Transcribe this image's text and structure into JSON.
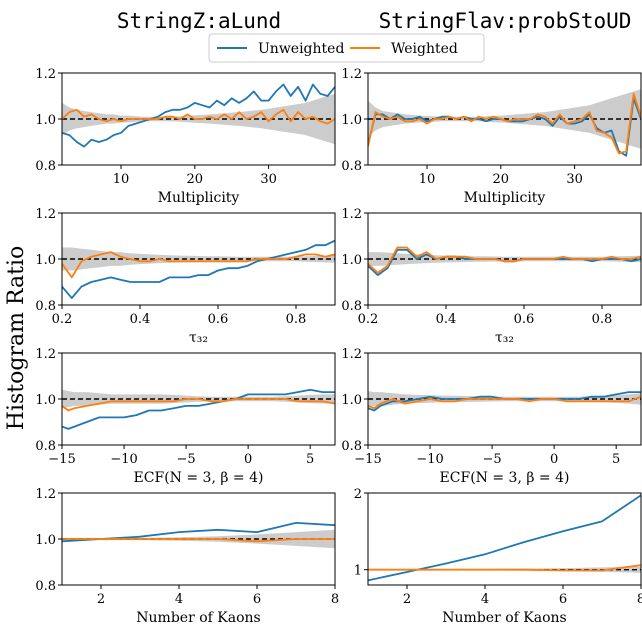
{
  "figure": {
    "ylabel": "Histogram Ratio",
    "column_titles": [
      "StringZ:aLund",
      "StringFlav:probStoUD"
    ],
    "legend": {
      "position": "top-center",
      "entries": [
        {
          "label": "Unweighted",
          "color": "#1f77b4"
        },
        {
          "label": "Weighted",
          "color": "#ff7f0e"
        }
      ]
    },
    "colors": {
      "unweighted": "#1f77b4",
      "weighted": "#ff7f0e",
      "band": "#cccccc",
      "reference": "#000000"
    }
  },
  "chart_data": [
    {
      "type": "line",
      "row": 0,
      "col": 0,
      "xlabel": "Multiplicity",
      "xlim": [
        2,
        39
      ],
      "ylim": [
        0.8,
        1.2
      ],
      "xticks": [
        10,
        20,
        30
      ],
      "xtick_labels": [
        "10",
        "20",
        "30"
      ],
      "yticks": [
        0.8,
        1.0,
        1.2
      ],
      "ytick_labels": [
        "0.8",
        "1.0",
        "1.2"
      ],
      "reference": 1.0,
      "x": [
        2,
        3,
        4,
        5,
        6,
        7,
        8,
        9,
        10,
        11,
        12,
        13,
        14,
        15,
        16,
        17,
        18,
        19,
        20,
        21,
        22,
        23,
        24,
        25,
        26,
        27,
        28,
        29,
        30,
        31,
        32,
        33,
        34,
        35,
        36,
        37,
        38,
        39
      ],
      "band": [
        0.07,
        0.05,
        0.04,
        0.035,
        0.03,
        0.025,
        0.02,
        0.02,
        0.015,
        0.015,
        0.012,
        0.01,
        0.01,
        0.01,
        0.01,
        0.01,
        0.012,
        0.014,
        0.016,
        0.018,
        0.02,
        0.022,
        0.025,
        0.028,
        0.03,
        0.033,
        0.037,
        0.04,
        0.045,
        0.05,
        0.055,
        0.06,
        0.065,
        0.07,
        0.08,
        0.09,
        0.1,
        0.11
      ],
      "series": [
        {
          "name": "Unweighted",
          "values": [
            0.94,
            0.93,
            0.9,
            0.88,
            0.91,
            0.9,
            0.91,
            0.93,
            0.94,
            0.97,
            0.98,
            0.99,
            1.0,
            1.01,
            1.03,
            1.04,
            1.04,
            1.05,
            1.07,
            1.06,
            1.05,
            1.08,
            1.06,
            1.09,
            1.07,
            1.09,
            1.12,
            1.08,
            1.08,
            1.12,
            1.15,
            1.1,
            1.14,
            1.08,
            1.15,
            1.11,
            1.1,
            1.14
          ]
        },
        {
          "name": "Weighted",
          "values": [
            1.0,
            1.03,
            1.04,
            1.01,
            1.02,
            1.0,
            0.99,
            1.0,
            0.99,
            1.0,
            1.0,
            1.0,
            1.0,
            1.0,
            1.01,
            1.01,
            1.0,
            1.02,
            1.0,
            1.0,
            1.01,
            1.0,
            1.02,
            1.0,
            1.03,
            1.0,
            1.01,
            1.03,
            0.99,
            1.02,
            1.04,
            0.99,
            1.03,
            1.0,
            1.01,
            0.99,
            0.98,
            1.0
          ]
        }
      ]
    },
    {
      "type": "line",
      "row": 0,
      "col": 1,
      "xlabel": "Multiplicity",
      "xlim": [
        2,
        39
      ],
      "ylim": [
        0.8,
        1.2
      ],
      "xticks": [
        10,
        20,
        30
      ],
      "xtick_labels": [
        "10",
        "20",
        "30"
      ],
      "yticks": [
        0.8,
        1.0,
        1.2
      ],
      "ytick_labels": [
        "0.8",
        "1.0",
        "1.2"
      ],
      "reference": 1.0,
      "x": [
        2,
        3,
        4,
        5,
        6,
        7,
        8,
        9,
        10,
        11,
        12,
        13,
        14,
        15,
        16,
        17,
        18,
        19,
        20,
        21,
        22,
        23,
        24,
        25,
        26,
        27,
        28,
        29,
        30,
        31,
        32,
        33,
        34,
        35,
        36,
        37,
        38,
        39
      ],
      "band": [
        0.08,
        0.05,
        0.035,
        0.03,
        0.025,
        0.02,
        0.018,
        0.015,
        0.013,
        0.012,
        0.01,
        0.01,
        0.01,
        0.01,
        0.01,
        0.01,
        0.012,
        0.014,
        0.015,
        0.017,
        0.02,
        0.022,
        0.025,
        0.028,
        0.03,
        0.035,
        0.04,
        0.045,
        0.05,
        0.055,
        0.06,
        0.07,
        0.08,
        0.09,
        0.1,
        0.11,
        0.12,
        0.13
      ],
      "series": [
        {
          "name": "Unweighted",
          "values": [
            0.89,
            1.02,
            1.02,
            1.0,
            1.02,
            1.0,
            1.0,
            1.01,
            0.99,
            1.0,
            1.01,
            1.01,
            1.0,
            1.01,
            1.0,
            1.0,
            0.99,
            1.0,
            1.0,
            0.99,
            0.99,
            0.99,
            1.0,
            1.01,
            1.0,
            0.97,
            1.01,
            0.98,
            0.98,
            0.99,
            1.02,
            0.96,
            0.94,
            0.95,
            0.86,
            0.84,
            1.09,
            1.0
          ]
        },
        {
          "name": "Weighted",
          "values": [
            0.88,
            1.03,
            1.01,
            1.0,
            1.01,
            0.99,
            0.99,
            1.0,
            0.98,
            1.0,
            1.0,
            1.01,
            1.0,
            1.01,
            0.99,
            1.01,
            1.0,
            1.01,
            1.0,
            0.99,
            1.0,
            1.0,
            1.0,
            1.02,
            1.01,
            0.98,
            1.02,
            0.98,
            0.99,
            1.0,
            1.03,
            0.95,
            0.94,
            0.92,
            0.85,
            0.86,
            1.11,
            1.01
          ]
        }
      ]
    },
    {
      "type": "line",
      "row": 1,
      "col": 0,
      "xlabel": "τ₃₂",
      "xlim": [
        0.2,
        0.9
      ],
      "ylim": [
        0.8,
        1.2
      ],
      "xticks": [
        0.2,
        0.4,
        0.6,
        0.8
      ],
      "xtick_labels": [
        "0.2",
        "0.4",
        "0.6",
        "0.8"
      ],
      "yticks": [
        0.8,
        1.0,
        1.2
      ],
      "ytick_labels": [
        "0.8",
        "1.0",
        "1.2"
      ],
      "reference": 1.0,
      "x": [
        0.2,
        0.225,
        0.25,
        0.275,
        0.3,
        0.325,
        0.35,
        0.375,
        0.4,
        0.425,
        0.45,
        0.475,
        0.5,
        0.525,
        0.55,
        0.575,
        0.6,
        0.625,
        0.65,
        0.675,
        0.7,
        0.725,
        0.75,
        0.775,
        0.8,
        0.825,
        0.85,
        0.875,
        0.9
      ],
      "band": [
        0.05,
        0.05,
        0.045,
        0.04,
        0.035,
        0.03,
        0.03,
        0.025,
        0.022,
        0.02,
        0.018,
        0.016,
        0.015,
        0.014,
        0.013,
        0.012,
        0.012,
        0.011,
        0.01,
        0.01,
        0.01,
        0.01,
        0.01,
        0.01,
        0.01,
        0.012,
        0.013,
        0.015,
        0.016
      ],
      "series": [
        {
          "name": "Unweighted",
          "values": [
            0.88,
            0.83,
            0.88,
            0.9,
            0.91,
            0.92,
            0.91,
            0.9,
            0.9,
            0.9,
            0.9,
            0.92,
            0.92,
            0.92,
            0.93,
            0.93,
            0.95,
            0.96,
            0.96,
            0.97,
            0.99,
            1.0,
            1.01,
            1.02,
            1.03,
            1.04,
            1.06,
            1.06,
            1.08
          ]
        },
        {
          "name": "Weighted",
          "values": [
            0.98,
            0.92,
            0.99,
            1.01,
            1.02,
            1.03,
            1.01,
            1.0,
            0.99,
            0.99,
            1.0,
            0.99,
            0.99,
            0.99,
            0.99,
            0.99,
            0.99,
            0.99,
            0.99,
            0.99,
            1.0,
            1.0,
            1.0,
            1.0,
            1.01,
            1.02,
            1.02,
            1.01,
            1.02
          ]
        }
      ]
    },
    {
      "type": "line",
      "row": 1,
      "col": 1,
      "xlabel": "τ₃₂",
      "xlim": [
        0.2,
        0.9
      ],
      "ylim": [
        0.8,
        1.2
      ],
      "xticks": [
        0.2,
        0.4,
        0.6,
        0.8
      ],
      "xtick_labels": [
        "0.2",
        "0.4",
        "0.6",
        "0.8"
      ],
      "yticks": [
        0.8,
        1.0,
        1.2
      ],
      "ytick_labels": [
        "0.8",
        "1.0",
        "1.2"
      ],
      "reference": 1.0,
      "x": [
        0.2,
        0.225,
        0.25,
        0.275,
        0.3,
        0.325,
        0.35,
        0.375,
        0.4,
        0.425,
        0.45,
        0.475,
        0.5,
        0.525,
        0.55,
        0.575,
        0.6,
        0.625,
        0.65,
        0.675,
        0.7,
        0.725,
        0.75,
        0.775,
        0.8,
        0.825,
        0.85,
        0.875,
        0.9
      ],
      "band": [
        0.03,
        0.03,
        0.028,
        0.025,
        0.022,
        0.02,
        0.018,
        0.016,
        0.015,
        0.014,
        0.013,
        0.012,
        0.012,
        0.011,
        0.01,
        0.01,
        0.01,
        0.01,
        0.01,
        0.01,
        0.01,
        0.01,
        0.01,
        0.01,
        0.01,
        0.011,
        0.012,
        0.013,
        0.014
      ],
      "series": [
        {
          "name": "Unweighted",
          "values": [
            0.97,
            0.93,
            0.96,
            1.04,
            1.04,
            1.0,
            1.02,
            1.0,
            1.01,
            1.01,
            1.0,
            1.0,
            1.0,
            1.0,
            0.99,
            0.99,
            1.0,
            1.0,
            1.0,
            1.0,
            1.0,
            1.0,
            1.0,
            0.99,
            1.0,
            1.0,
            1.0,
            0.99,
            1.0
          ]
        },
        {
          "name": "Weighted",
          "values": [
            0.98,
            0.94,
            0.97,
            1.05,
            1.05,
            1.01,
            1.03,
            1.0,
            1.01,
            1.01,
            1.01,
            1.0,
            1.0,
            1.0,
            0.99,
            0.99,
            1.0,
            1.0,
            1.0,
            1.0,
            1.01,
            1.0,
            1.0,
            1.0,
            1.0,
            1.01,
            1.0,
            1.0,
            1.01
          ]
        }
      ]
    },
    {
      "type": "line",
      "row": 2,
      "col": 0,
      "xlabel": "ECF(N = 3, β = 4)",
      "xlim": [
        -15,
        7
      ],
      "ylim": [
        0.8,
        1.2
      ],
      "xticks": [
        -15,
        -10,
        -5,
        0,
        5
      ],
      "xtick_labels": [
        "−15",
        "−10",
        "−5",
        "0",
        "5"
      ],
      "yticks": [
        0.8,
        1.0,
        1.2
      ],
      "ytick_labels": [
        "0.8",
        "1.0",
        "1.2"
      ],
      "reference": 1.0,
      "x": [
        -15,
        -14.5,
        -14,
        -13,
        -12,
        -11,
        -10,
        -9,
        -8,
        -7,
        -6,
        -5,
        -4,
        -3,
        -2,
        -1,
        0,
        1,
        2,
        3,
        4,
        5,
        6,
        7
      ],
      "band": [
        0.04,
        0.035,
        0.03,
        0.03,
        0.025,
        0.02,
        0.02,
        0.02,
        0.02,
        0.02,
        0.018,
        0.015,
        0.012,
        0.01,
        0.01,
        0.01,
        0.01,
        0.01,
        0.01,
        0.012,
        0.015,
        0.018,
        0.02,
        0.02
      ],
      "series": [
        {
          "name": "Unweighted",
          "values": [
            0.88,
            0.87,
            0.88,
            0.9,
            0.92,
            0.92,
            0.92,
            0.93,
            0.95,
            0.95,
            0.96,
            0.97,
            0.97,
            0.98,
            0.99,
            1.0,
            1.02,
            1.02,
            1.02,
            1.02,
            1.03,
            1.04,
            1.03,
            1.03
          ]
        },
        {
          "name": "Weighted",
          "values": [
            0.97,
            0.95,
            0.96,
            0.97,
            0.98,
            0.99,
            0.99,
            0.99,
            0.99,
            0.99,
            0.99,
            1.0,
            1.0,
            0.99,
            0.99,
            1.0,
            1.0,
            1.0,
            1.0,
            1.0,
            0.99,
            0.99,
            0.99,
            0.98
          ]
        }
      ]
    },
    {
      "type": "line",
      "row": 2,
      "col": 1,
      "xlabel": "ECF(N = 3, β = 4)",
      "xlim": [
        -15,
        7
      ],
      "ylim": [
        0.8,
        1.2
      ],
      "xticks": [
        -15,
        -10,
        -5,
        0,
        5
      ],
      "xtick_labels": [
        "−15",
        "−10",
        "−5",
        "0",
        "5"
      ],
      "yticks": [
        0.8,
        1.0,
        1.2
      ],
      "ytick_labels": [
        "0.8",
        "1.0",
        "1.2"
      ],
      "reference": 1.0,
      "x": [
        -15,
        -14.5,
        -14,
        -13,
        -12,
        -11,
        -10,
        -9,
        -8,
        -7,
        -6,
        -5,
        -4,
        -3,
        -2,
        -1,
        0,
        1,
        2,
        3,
        4,
        5,
        6,
        7
      ],
      "band": [
        0.035,
        0.03,
        0.03,
        0.025,
        0.02,
        0.018,
        0.016,
        0.015,
        0.014,
        0.013,
        0.012,
        0.011,
        0.01,
        0.01,
        0.01,
        0.01,
        0.01,
        0.01,
        0.01,
        0.012,
        0.014,
        0.016,
        0.02,
        0.025
      ],
      "series": [
        {
          "name": "Unweighted",
          "values": [
            0.96,
            0.95,
            0.97,
            0.99,
            0.99,
            1.0,
            1.01,
            1.0,
            1.0,
            1.0,
            1.01,
            1.01,
            1.0,
            1.0,
            1.0,
            1.0,
            1.0,
            1.0,
            1.0,
            1.01,
            1.01,
            1.02,
            1.03,
            1.03
          ]
        },
        {
          "name": "Weighted",
          "values": [
            0.97,
            0.96,
            0.98,
            1.0,
            0.98,
            0.99,
            1.0,
            0.99,
            0.99,
            1.0,
            1.0,
            1.0,
            1.0,
            1.0,
            0.99,
            1.0,
            1.0,
            0.99,
            0.99,
            0.99,
            0.99,
            0.99,
            0.99,
            1.01
          ]
        }
      ]
    },
    {
      "type": "line",
      "row": 3,
      "col": 0,
      "xlabel": "Number of Kaons",
      "xlim": [
        1,
        8
      ],
      "ylim": [
        0.8,
        1.2
      ],
      "xticks": [
        2,
        4,
        6,
        8
      ],
      "xtick_labels": [
        "2",
        "4",
        "6",
        "8"
      ],
      "yticks": [
        0.8,
        1.0,
        1.2
      ],
      "ytick_labels": [
        "0.8",
        "1.0",
        "1.2"
      ],
      "reference": 1.0,
      "x": [
        1,
        2,
        3,
        4,
        5,
        6,
        7,
        8
      ],
      "band": [
        0.005,
        0.005,
        0.005,
        0.008,
        0.012,
        0.02,
        0.03,
        0.04
      ],
      "series": [
        {
          "name": "Unweighted",
          "values": [
            0.99,
            1.0,
            1.01,
            1.03,
            1.04,
            1.03,
            1.07,
            1.06
          ]
        },
        {
          "name": "Weighted",
          "values": [
            1.0,
            1.0,
            1.0,
            1.0,
            1.0,
            0.99,
            1.0,
            1.0
          ]
        }
      ]
    },
    {
      "type": "line",
      "row": 3,
      "col": 1,
      "xlabel": "Number of Kaons",
      "xlim": [
        1,
        8
      ],
      "ylim": [
        0.8,
        2.0
      ],
      "xticks": [
        2,
        4,
        6,
        8
      ],
      "xtick_labels": [
        "2",
        "4",
        "6",
        "8"
      ],
      "yticks": [
        1,
        2
      ],
      "ytick_labels": [
        "1",
        "2"
      ],
      "reference": 1.0,
      "x": [
        1,
        2,
        3,
        4,
        5,
        6,
        7,
        8
      ],
      "band": [
        0.01,
        0.01,
        0.01,
        0.01,
        0.015,
        0.02,
        0.03,
        0.04
      ],
      "series": [
        {
          "name": "Unweighted",
          "values": [
            0.86,
            0.97,
            1.08,
            1.2,
            1.36,
            1.5,
            1.63,
            1.97
          ]
        },
        {
          "name": "Weighted",
          "values": [
            1.0,
            1.0,
            1.0,
            1.0,
            1.0,
            0.99,
            0.99,
            1.06
          ]
        }
      ]
    }
  ]
}
